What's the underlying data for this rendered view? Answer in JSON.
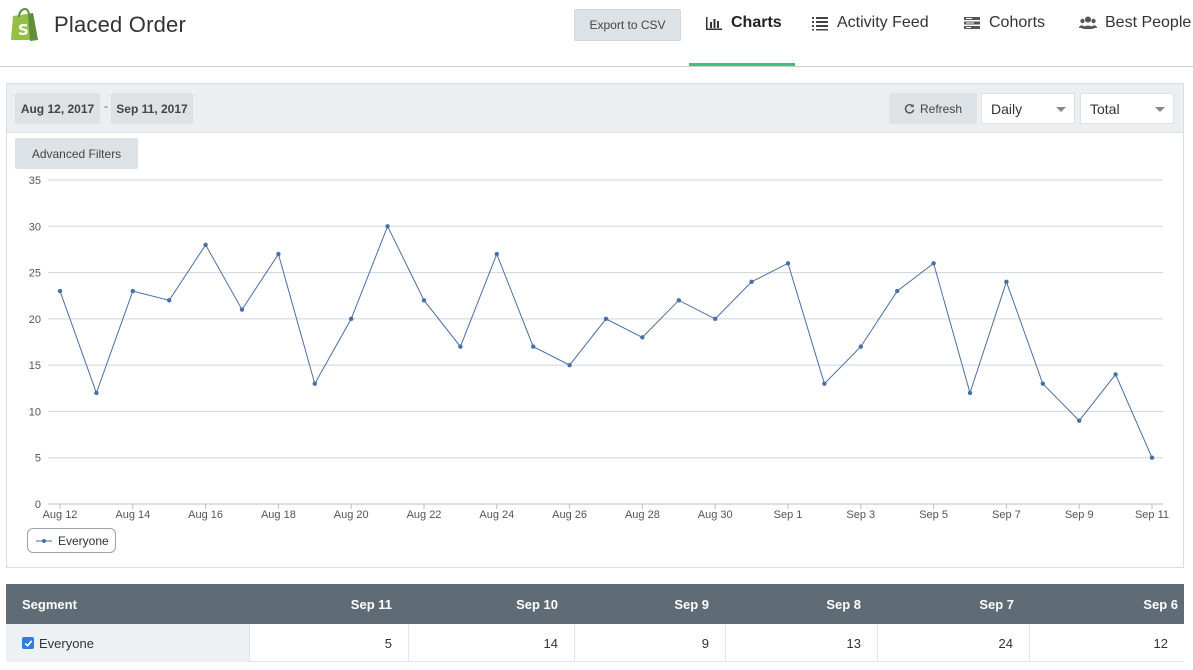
{
  "header": {
    "title": "Placed Order",
    "export_label": "Export to CSV",
    "nav": [
      {
        "label": "Charts",
        "icon": "bar-chart-icon",
        "active": true
      },
      {
        "label": "Activity Feed",
        "icon": "list-icon",
        "active": false
      },
      {
        "label": "Cohorts",
        "icon": "cohorts-icon",
        "active": false
      },
      {
        "label": "Best People",
        "icon": "users-icon",
        "active": false
      }
    ],
    "accent": "#3fbf7f"
  },
  "toolbar": {
    "date_start": "Aug 12, 2017",
    "date_separator": "-",
    "date_end": "Sep 11, 2017",
    "refresh_label": "Refresh",
    "interval_value": "Daily",
    "measure_value": "Total",
    "advanced_filters_label": "Advanced Filters"
  },
  "chart_data": {
    "type": "line",
    "x": [
      "Aug 12",
      "Aug 13",
      "Aug 14",
      "Aug 15",
      "Aug 16",
      "Aug 17",
      "Aug 18",
      "Aug 19",
      "Aug 20",
      "Aug 21",
      "Aug 22",
      "Aug 23",
      "Aug 24",
      "Aug 25",
      "Aug 26",
      "Aug 27",
      "Aug 28",
      "Aug 29",
      "Aug 30",
      "Aug 31",
      "Sep 1",
      "Sep 2",
      "Sep 3",
      "Sep 4",
      "Sep 5",
      "Sep 6",
      "Sep 7",
      "Sep 8",
      "Sep 9",
      "Sep 10",
      "Sep 11"
    ],
    "x_tick_labels": [
      "Aug 12",
      "Aug 14",
      "Aug 16",
      "Aug 18",
      "Aug 20",
      "Aug 22",
      "Aug 24",
      "Aug 26",
      "Aug 28",
      "Aug 30",
      "Sep 1",
      "Sep 3",
      "Sep 5",
      "Sep 7",
      "Sep 9",
      "Sep 11"
    ],
    "y_ticks": [
      0,
      5,
      10,
      15,
      20,
      25,
      30,
      35
    ],
    "ylim": [
      0,
      35
    ],
    "grid": true,
    "legend_placement": "bottom-left",
    "series": [
      {
        "name": "Everyone",
        "color": "#4a6fa5",
        "values": [
          23,
          12,
          23,
          22,
          28,
          21,
          27,
          13,
          20,
          30,
          22,
          17,
          27,
          17,
          15,
          20,
          18,
          22,
          20,
          24,
          26,
          13,
          17,
          23,
          26,
          12,
          24,
          13,
          9,
          14,
          5
        ]
      }
    ]
  },
  "table": {
    "headers": [
      "Segment",
      "Sep 11",
      "Sep 10",
      "Sep 9",
      "Sep 8",
      "Sep 7",
      "Sep 6"
    ],
    "rows": [
      {
        "segment": "Everyone",
        "checked": true,
        "values": [
          "5",
          "14",
          "9",
          "13",
          "24",
          "12"
        ]
      }
    ],
    "header_bg": "#5f6c75",
    "checkbox_color": "#2a7fe0"
  }
}
